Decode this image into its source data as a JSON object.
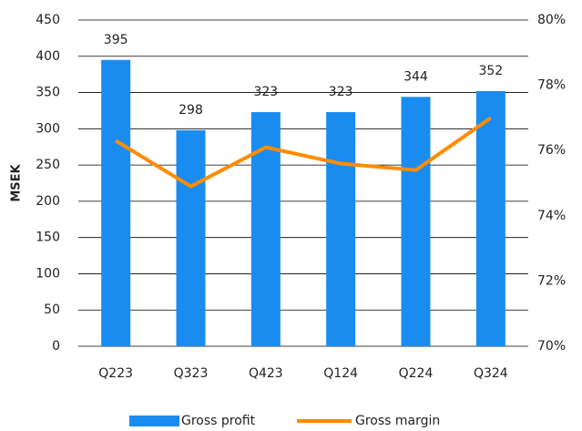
{
  "chart_data": {
    "type": "bar",
    "categories": [
      "Q223",
      "Q323",
      "Q423",
      "Q124",
      "Q224",
      "Q324"
    ],
    "series": [
      {
        "name": "Gross profit",
        "color": "#1a8cf0",
        "values": [
          395,
          298,
          323,
          323,
          344,
          352
        ]
      },
      {
        "name": "Gross margin",
        "type": "line",
        "axis": "y2",
        "color": "#ff8c00",
        "values": [
          76.3,
          74.9,
          76.1,
          75.6,
          75.4,
          77.0
        ]
      }
    ],
    "ylabel": "MSEK",
    "ylim": [
      0,
      450
    ],
    "yticks": [
      0,
      50,
      100,
      150,
      200,
      250,
      300,
      350,
      400,
      450
    ],
    "y2lim": [
      70,
      80
    ],
    "y2ticks": [
      {
        "value": 70,
        "label": "70%"
      },
      {
        "value": 72,
        "label": "72%"
      },
      {
        "value": 74,
        "label": "74%"
      },
      {
        "value": 76,
        "label": "76%"
      },
      {
        "value": 78,
        "label": "78%"
      },
      {
        "value": 80,
        "label": "80%"
      }
    ],
    "grid": true,
    "legend": "bottom"
  }
}
